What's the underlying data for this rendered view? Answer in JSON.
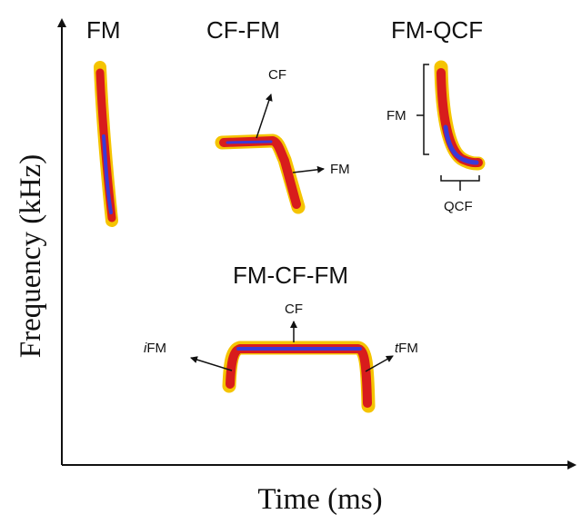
{
  "axes": {
    "x_title": "Time (ms)",
    "y_title": "Frequency (kHz)"
  },
  "calls": {
    "fm": {
      "title": "FM"
    },
    "cf_fm": {
      "title": "CF-FM",
      "cf_label": "CF",
      "fm_label": "FM"
    },
    "fm_qcf": {
      "title": "FM-QCF",
      "fm_label": "FM",
      "qcf_label": "QCF"
    },
    "fm_cf_fm": {
      "title": "FM-CF-FM",
      "cf_label": "CF",
      "ifm_prefix": "i",
      "tfm_prefix": "t",
      "fm_suffix": "FM"
    }
  },
  "colors": {
    "outer": "#f5c400",
    "middle": "#d81c1c",
    "inner": "#3a3ad6",
    "axis": "#111111"
  }
}
